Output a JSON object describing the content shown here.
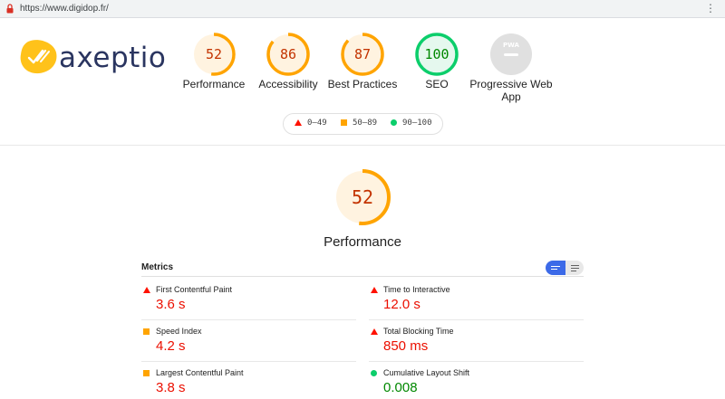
{
  "browser": {
    "url": "https://www.digidop.fr/",
    "lock_icon": "lock-icon",
    "menu_icon": "kebab-menu-icon"
  },
  "logo": {
    "text": "axeptio",
    "accent": "#ffc21a",
    "text_color": "#2a3560"
  },
  "categories": [
    {
      "label": "Performance",
      "score": "52",
      "fraction": 0.52,
      "rating": "average"
    },
    {
      "label": "Accessibility",
      "score": "86",
      "fraction": 0.86,
      "rating": "average"
    },
    {
      "label": "Best Practices",
      "score": "87",
      "fraction": 0.87,
      "rating": "average"
    },
    {
      "label": "SEO",
      "score": "100",
      "fraction": 1.0,
      "rating": "pass"
    },
    {
      "label": "Progressive Web App",
      "score": "PWA",
      "fraction": 0,
      "rating": "na"
    }
  ],
  "legend": [
    {
      "range": "0–49",
      "shape": "triangle",
      "color": "#ff1100"
    },
    {
      "range": "50–89",
      "shape": "square",
      "color": "#ffa400"
    },
    {
      "range": "90–100",
      "shape": "circle",
      "color": "#0cce6b"
    }
  ],
  "colors": {
    "average": "#ffa400",
    "average_text": "#c33300",
    "average_bg": "#fff3e0",
    "pass": "#0cce6b",
    "pass_text": "#008800",
    "pass_bg": "#e5f8ee",
    "fail": "#ff1100",
    "na": "#9e9e9e",
    "toggle_active": "#3c6ae8"
  },
  "performance": {
    "score": "52",
    "fraction": 0.52,
    "title": "Performance"
  },
  "metrics": {
    "title": "Metrics",
    "view_toggle": {
      "active": "expanded-view-icon",
      "inactive": "list-view-icon"
    },
    "items": [
      {
        "name": "First Contentful Paint",
        "value": "3.6 s",
        "rating": "fail"
      },
      {
        "name": "Time to Interactive",
        "value": "12.0 s",
        "rating": "fail"
      },
      {
        "name": "Speed Index",
        "value": "4.2 s",
        "rating": "average"
      },
      {
        "name": "Total Blocking Time",
        "value": "850 ms",
        "rating": "fail"
      },
      {
        "name": "Largest Contentful Paint",
        "value": "3.8 s",
        "rating": "average"
      },
      {
        "name": "Cumulative Layout Shift",
        "value": "0.008",
        "rating": "pass"
      }
    ]
  }
}
